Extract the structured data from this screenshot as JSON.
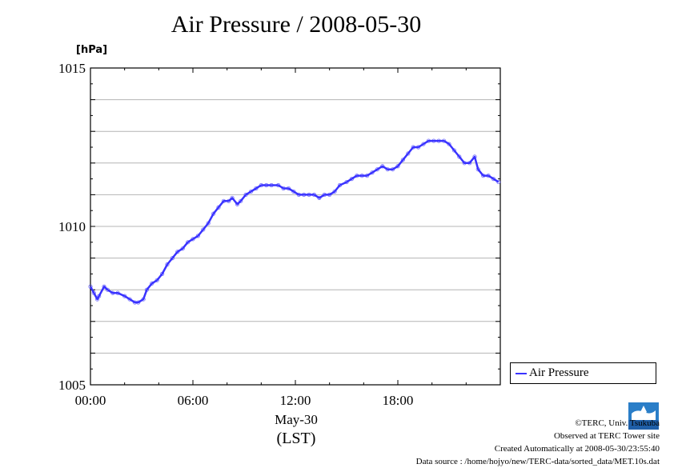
{
  "title": "Air Pressure / 2008-05-30",
  "unit": "[hPa]",
  "legend": {
    "label": "Air Pressure"
  },
  "xaxis": {
    "date_label": "May-30",
    "tz_label": "(LST)"
  },
  "credits": {
    "line1": "©TERC, Univ. Tsukuba",
    "line2": "Observed at TERC Tower site",
    "line3": "Created Automatically at 2008-05-30/23:55:40",
    "line4": "Data source : /home/hojyo/new/TERC-data/sorted_data/MET.10s.dat"
  },
  "logo": {
    "text": "TERC",
    "icon": "terc-logo-icon"
  },
  "colors": {
    "series": "#3a33ff",
    "grid": "#b4b4b4",
    "axis": "#000000"
  },
  "chart_data": {
    "type": "line",
    "title": "Air Pressure / 2008-05-30",
    "ylabel": "[hPa]",
    "xlabel": "(LST)",
    "ylim": [
      1005,
      1015
    ],
    "xlim_hours": [
      0,
      24
    ],
    "yticks": [
      1005,
      1010,
      1015
    ],
    "ytick_labels": [
      "1005",
      "1010",
      "1015"
    ],
    "xticks_hours": [
      0,
      6,
      12,
      18
    ],
    "xtick_labels": [
      "00:00",
      "06:00",
      "12:00",
      "18:00"
    ],
    "grid": true,
    "legend_position": "right-bottom",
    "series": [
      {
        "name": "Air Pressure",
        "color": "#3a33ff",
        "x_hours": [
          0,
          0.2,
          0.4,
          0.5,
          0.8,
          1.0,
          1.3,
          1.6,
          2.0,
          2.3,
          2.6,
          2.8,
          3.1,
          3.3,
          3.6,
          3.9,
          4.2,
          4.5,
          4.8,
          5.1,
          5.4,
          5.7,
          6.0,
          6.3,
          6.6,
          6.9,
          7.2,
          7.5,
          7.8,
          8.1,
          8.3,
          8.6,
          8.8,
          9.1,
          9.4,
          9.7,
          10.0,
          10.3,
          10.6,
          11.0,
          11.3,
          11.6,
          11.9,
          12.2,
          12.5,
          12.8,
          13.1,
          13.4,
          13.7,
          14.0,
          14.3,
          14.6,
          15.0,
          15.3,
          15.6,
          15.9,
          16.2,
          16.5,
          16.8,
          17.1,
          17.4,
          17.7,
          18.0,
          18.3,
          18.6,
          18.9,
          19.2,
          19.5,
          19.8,
          20.1,
          20.4,
          20.7,
          21.0,
          21.3,
          21.6,
          21.9,
          22.2,
          22.5,
          22.7,
          23.0,
          23.3,
          23.6,
          23.9
        ],
        "values": [
          1008.1,
          1007.9,
          1007.7,
          1007.8,
          1008.1,
          1008.0,
          1007.9,
          1007.9,
          1007.8,
          1007.7,
          1007.6,
          1007.6,
          1007.7,
          1008.0,
          1008.2,
          1008.3,
          1008.5,
          1008.8,
          1009.0,
          1009.2,
          1009.3,
          1009.5,
          1009.6,
          1009.7,
          1009.9,
          1010.1,
          1010.4,
          1010.6,
          1010.8,
          1010.8,
          1010.9,
          1010.7,
          1010.8,
          1011.0,
          1011.1,
          1011.2,
          1011.3,
          1011.3,
          1011.3,
          1011.3,
          1011.2,
          1011.2,
          1011.1,
          1011.0,
          1011.0,
          1011.0,
          1011.0,
          1010.9,
          1011.0,
          1011.0,
          1011.1,
          1011.3,
          1011.4,
          1011.5,
          1011.6,
          1011.6,
          1011.6,
          1011.7,
          1011.8,
          1011.9,
          1011.8,
          1011.8,
          1011.9,
          1012.1,
          1012.3,
          1012.5,
          1012.5,
          1012.6,
          1012.7,
          1012.7,
          1012.7,
          1012.7,
          1012.6,
          1012.4,
          1012.2,
          1012.0,
          1012.0,
          1012.2,
          1011.8,
          1011.6,
          1011.6,
          1011.5,
          1011.4
        ]
      }
    ]
  }
}
